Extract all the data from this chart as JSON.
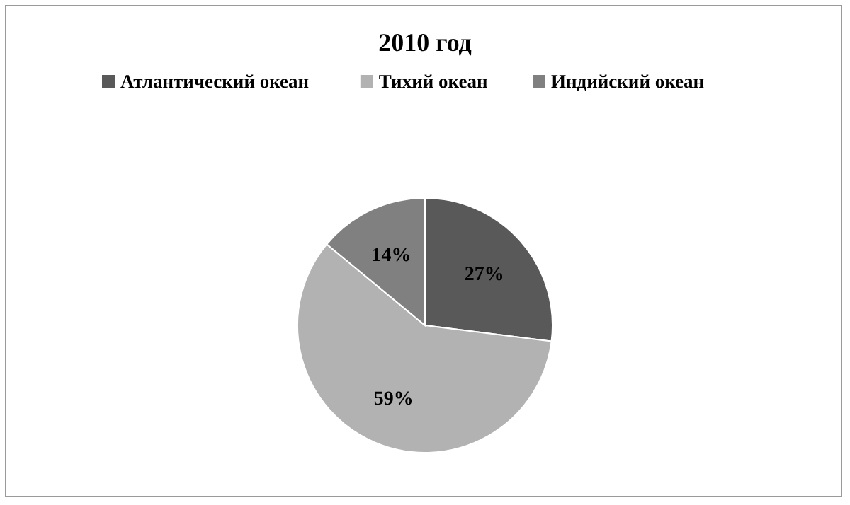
{
  "chart_data": {
    "type": "pie",
    "title": "2010 год",
    "categories": [
      "Атлантический океан",
      "Тихий океан",
      "Индийский океан"
    ],
    "values": [
      27,
      59,
      14
    ],
    "colors": [
      "#595959",
      "#b2b2b2",
      "#808080"
    ],
    "legend": "top",
    "value_labels": [
      "27%",
      "59%",
      "14%"
    ]
  }
}
